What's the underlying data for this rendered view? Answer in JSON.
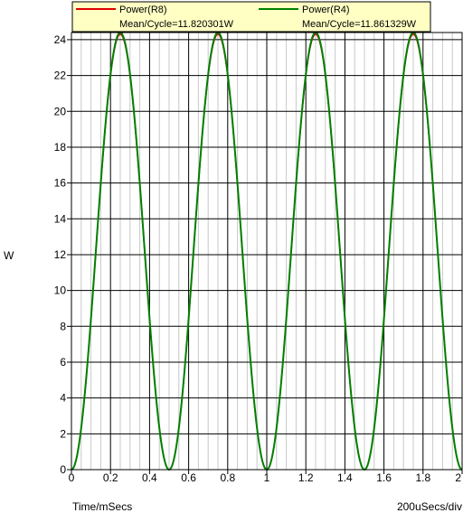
{
  "chart_data": {
    "type": "line",
    "xlabel": "Time/mSecs",
    "ylabel": "W",
    "scale_note": "200uSecs/div",
    "xlim": [
      0,
      2
    ],
    "ylim": [
      0,
      24.4
    ],
    "x_ticks": [
      "0",
      "0.2",
      "0.4",
      "0.6",
      "0.8",
      "1",
      "1.2",
      "1.4",
      "1.6",
      "1.8",
      "2"
    ],
    "y_ticks": [
      "0",
      "2",
      "4",
      "6",
      "8",
      "10",
      "12",
      "14",
      "16",
      "18",
      "20",
      "22",
      "24"
    ],
    "grid": true,
    "legend_position": "top",
    "series": [
      {
        "name": "Power(R8)",
        "stat": "Mean/Cycle=11.820301W",
        "color": "#e00000",
        "amplitude": 24.3,
        "period_ms": 0.5,
        "peaks_x": [
          0.25,
          0.75,
          1.25,
          1.75
        ],
        "peak_y": 24.3
      },
      {
        "name": "Power(R4)",
        "stat": "Mean/Cycle=11.861329W",
        "color": "#008000",
        "amplitude": 24.4,
        "period_ms": 0.5,
        "peaks_x": [
          0.25,
          0.75,
          1.25,
          1.75
        ],
        "peak_y": 24.4
      }
    ]
  }
}
